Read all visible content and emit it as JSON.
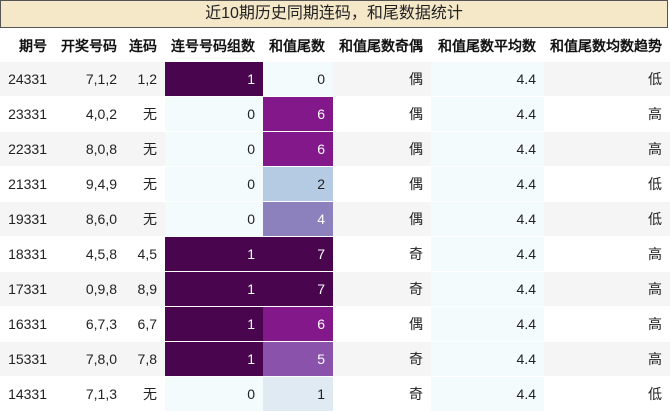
{
  "title": "近10期历史同期连码，和尾数据统计",
  "columns": [
    "期号",
    "开奖号码",
    "连码",
    "连号号码组数",
    "和值尾数",
    "和值尾数奇偶",
    "和值尾数平均数",
    "和值尾数均数趋势"
  ],
  "rows": [
    {
      "issue": "24331",
      "numbers": "7,1,2",
      "consecutive": "1,2",
      "groups": "1",
      "tail": "0",
      "parity": "偶",
      "avg": "4.4",
      "trend": "低",
      "groups_color": "#49064f",
      "tail_color": "#f4fbfd"
    },
    {
      "issue": "23331",
      "numbers": "4,0,2",
      "consecutive": "无",
      "groups": "0",
      "tail": "6",
      "parity": "偶",
      "avg": "4.4",
      "trend": "高",
      "groups_color": "#f4fbfd",
      "tail_color": "#83188a"
    },
    {
      "issue": "22331",
      "numbers": "8,0,8",
      "consecutive": "无",
      "groups": "0",
      "tail": "6",
      "parity": "偶",
      "avg": "4.4",
      "trend": "高",
      "groups_color": "#f4fbfd",
      "tail_color": "#83188a"
    },
    {
      "issue": "21331",
      "numbers": "9,4,9",
      "consecutive": "无",
      "groups": "0",
      "tail": "2",
      "parity": "偶",
      "avg": "4.4",
      "trend": "低",
      "groups_color": "#f4fbfd",
      "tail_color": "#b5cae3"
    },
    {
      "issue": "19331",
      "numbers": "8,6,0",
      "consecutive": "无",
      "groups": "0",
      "tail": "4",
      "parity": "偶",
      "avg": "4.4",
      "trend": "低",
      "groups_color": "#f4fbfd",
      "tail_color": "#8c80bd"
    },
    {
      "issue": "18331",
      "numbers": "4,5,8",
      "consecutive": "4,5",
      "groups": "1",
      "tail": "7",
      "parity": "奇",
      "avg": "4.4",
      "trend": "高",
      "groups_color": "#49064f",
      "tail_color": "#49064f"
    },
    {
      "issue": "17331",
      "numbers": "0,9,8",
      "consecutive": "8,9",
      "groups": "1",
      "tail": "7",
      "parity": "奇",
      "avg": "4.4",
      "trend": "高",
      "groups_color": "#49064f",
      "tail_color": "#49064f"
    },
    {
      "issue": "16331",
      "numbers": "6,7,3",
      "consecutive": "6,7",
      "groups": "1",
      "tail": "6",
      "parity": "偶",
      "avg": "4.4",
      "trend": "高",
      "groups_color": "#49064f",
      "tail_color": "#83188a"
    },
    {
      "issue": "15331",
      "numbers": "7,8,0",
      "consecutive": "7,8",
      "groups": "1",
      "tail": "5",
      "parity": "奇",
      "avg": "4.4",
      "trend": "高",
      "groups_color": "#49064f",
      "tail_color": "#8a52aa"
    },
    {
      "issue": "14331",
      "numbers": "7,1,3",
      "consecutive": "无",
      "groups": "0",
      "tail": "1",
      "parity": "奇",
      "avg": "4.4",
      "trend": "低",
      "groups_color": "#f4fbfd",
      "tail_color": "#dfeaf3"
    }
  ]
}
